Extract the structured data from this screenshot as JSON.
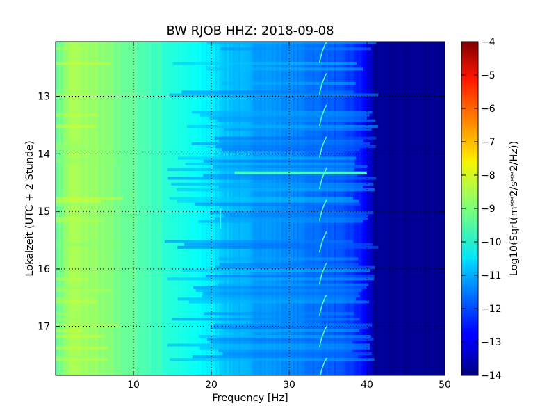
{
  "chart_data": {
    "type": "heatmap",
    "title": "BW RJOB HHZ: 2018-09-08",
    "xlabel": "Frequency [Hz]",
    "ylabel": "Lokalzeit (UTC + 2 Stunde)",
    "xlim": [
      0,
      50
    ],
    "ylim": [
      12.05,
      17.85
    ],
    "y_inverted": true,
    "x_ticks": [
      10,
      20,
      30,
      40,
      50
    ],
    "y_ticks": [
      13,
      14,
      15,
      16,
      17
    ],
    "grid": true,
    "colorscale": "jet",
    "colorbar": {
      "label": "Log10(Sqrt(m**2/s**2/Hz))",
      "range": [
        -14,
        -4
      ],
      "ticks": [
        -4,
        -5,
        -6,
        -7,
        -8,
        -9,
        -10,
        -11,
        -12,
        -13,
        -14
      ]
    },
    "spectrum_profile": {
      "frequency_hz": [
        0,
        2,
        5,
        10,
        15,
        20,
        22,
        25,
        30,
        35,
        38,
        40,
        41,
        50
      ],
      "log_amplitude": [
        -9.3,
        -8.6,
        -8.8,
        -9.3,
        -9.9,
        -10.4,
        -10.8,
        -11.1,
        -11.4,
        -11.8,
        -12.2,
        -12.8,
        -13.8,
        -13.8
      ]
    },
    "features": [
      {
        "type": "narrowband-line",
        "frequency_hz": 34.5,
        "description": "recurring tonal feature near 34-35 Hz"
      },
      {
        "type": "broadband-event",
        "time": 14.33,
        "frequency_range_hz": [
          23,
          40
        ]
      },
      {
        "type": "narrowband-line",
        "frequency_hz": 21.2,
        "time_range": [
          14.95,
          15.3
        ]
      }
    ]
  }
}
